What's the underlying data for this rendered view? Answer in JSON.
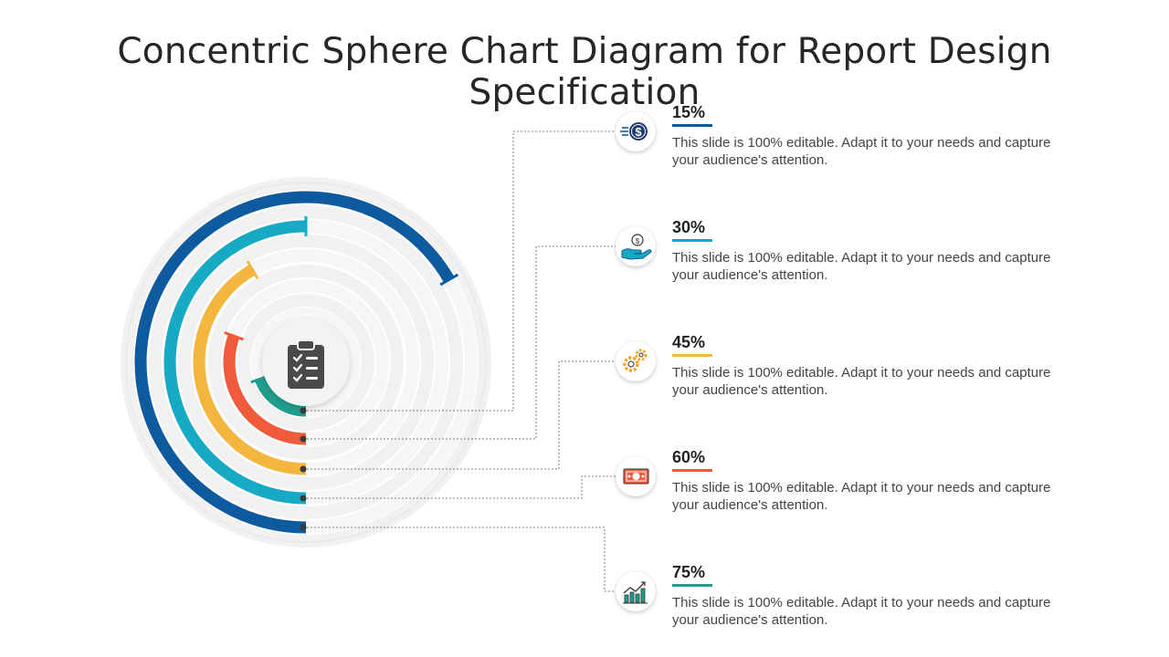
{
  "title": "Concentric Sphere Chart Diagram for Report Design Specification",
  "items": [
    {
      "value": 15,
      "label": "15%",
      "color": "#0d5a9e",
      "icon": "dollar-coin-icon",
      "text": "This slide is 100% editable. Adapt it to your needs and capture your audience's attention."
    },
    {
      "value": 30,
      "label": "30%",
      "color": "#16aac4",
      "icon": "hand-money-icon",
      "text": "This slide is 100% editable. Adapt it to your needs and capture your audience's attention."
    },
    {
      "value": 45,
      "label": "45%",
      "color": "#f4b63e",
      "icon": "gears-icon",
      "text": "This slide is 100% editable. Adapt it to your needs and capture your audience's attention."
    },
    {
      "value": 60,
      "label": "60%",
      "color": "#ef5b3b",
      "icon": "banknote-icon",
      "text": "This slide is 100% editable. Adapt it to your needs and capture your audience's attention."
    },
    {
      "value": 75,
      "label": "75%",
      "color": "#1f9e8c",
      "icon": "growth-chart-icon",
      "text": "This slide is 100% editable. Adapt it to your needs and capture your audience's attention."
    }
  ],
  "center_icon": "clipboard-checklist-icon"
}
